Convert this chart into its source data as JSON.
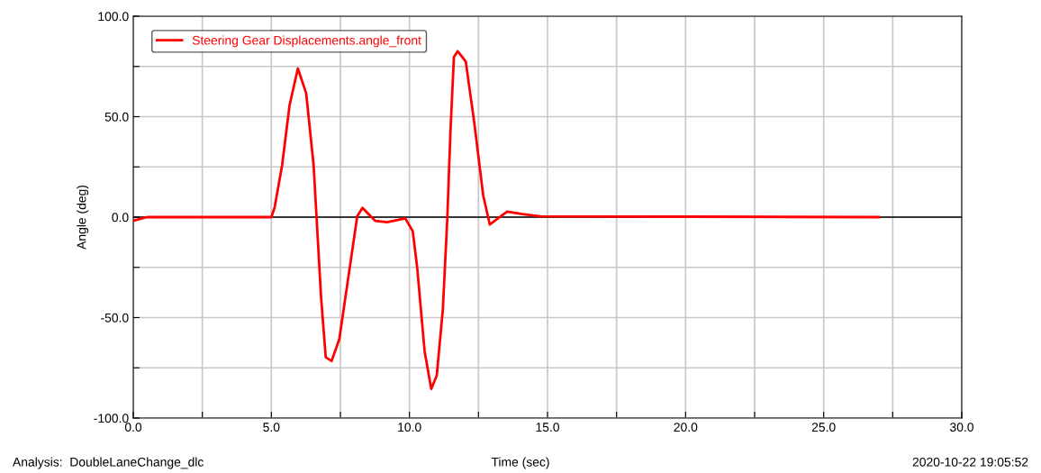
{
  "chart_data": {
    "type": "line",
    "xlabel": "Time (sec)",
    "ylabel": "Angle (deg)",
    "annotations": [
      "Analysis:  DoubleLaneChange_dlc",
      "2020-10-22 19:05:52"
    ],
    "series": [
      {
        "name": "Steering Gear Displacements.angle_front",
        "color": "#ff0000",
        "x": [
          0,
          0.5,
          5.0,
          5.12,
          5.39,
          5.66,
          5.96,
          6.26,
          6.53,
          6.64,
          6.8,
          6.97,
          7.18,
          7.46,
          7.84,
          8.11,
          8.3,
          8.54,
          8.76,
          9.19,
          9.85,
          10.12,
          10.28,
          10.55,
          10.79,
          10.99,
          11.21,
          11.37,
          11.48,
          11.61,
          11.75,
          12.04,
          12.35,
          12.67,
          12.91,
          13.16,
          13.54,
          14.09,
          14.74,
          27
        ],
        "values": [
          -1.8,
          0,
          0,
          4.9,
          25.9,
          55.7,
          74,
          61.7,
          25.9,
          -0.9,
          -39.9,
          -69.8,
          -71.6,
          -60.8,
          -25,
          0.4,
          4.6,
          1.2,
          -1.8,
          -2.5,
          -0.6,
          -7,
          -25,
          -66.8,
          -85.5,
          -78.8,
          -45.9,
          -1,
          40.8,
          79.7,
          82.6,
          77.4,
          46.8,
          10.9,
          -3.7,
          -1.1,
          2.7,
          1.5,
          0.4,
          0
        ]
      }
    ],
    "xlim": [
      0,
      30
    ],
    "xticks": [
      {
        "value": 0,
        "label": "0.0"
      },
      {
        "value": 2.5,
        "label": null
      },
      {
        "value": 5,
        "label": "5.0"
      },
      {
        "value": 7.5,
        "label": null
      },
      {
        "value": 10,
        "label": "10.0"
      },
      {
        "value": 12.5,
        "label": null
      },
      {
        "value": 15,
        "label": "15.0"
      },
      {
        "value": 17.5,
        "label": null
      },
      {
        "value": 20,
        "label": "20.0"
      },
      {
        "value": 22.5,
        "label": null
      },
      {
        "value": 25,
        "label": "25.0"
      },
      {
        "value": 27.5,
        "label": null
      },
      {
        "value": 30,
        "label": "30.0"
      }
    ],
    "ylim": [
      -100,
      100
    ],
    "yticks": [
      {
        "value": -100,
        "label": "-100.0"
      },
      {
        "value": -75,
        "label": null
      },
      {
        "value": -50,
        "label": "-50.0"
      },
      {
        "value": -25,
        "label": null
      },
      {
        "value": 0,
        "label": "0.0"
      },
      {
        "value": 25,
        "label": null
      },
      {
        "value": 50,
        "label": "50.0"
      },
      {
        "value": 75,
        "label": null
      },
      {
        "value": 100,
        "label": "100.0"
      }
    ],
    "ref_lines": [
      {
        "axis": "y",
        "value": 0,
        "color": "#000000"
      }
    ],
    "grid": true,
    "legend": "top left",
    "line_style": "solid",
    "marker": "none"
  }
}
